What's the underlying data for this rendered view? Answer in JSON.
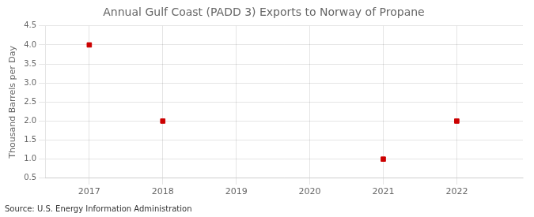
{
  "chart_data": {
    "type": "scatter",
    "title": "Annual Gulf Coast (PADD 3) Exports to Norway of Propane",
    "ylabel": "Thousand Barrels per Day",
    "annotations": [
      "Source: U.S. Energy Information Administration"
    ],
    "x": [
      2017,
      2018,
      2021,
      2022
    ],
    "values": [
      4.0,
      2.0,
      1.0,
      2.0
    ],
    "color": "#cc0000",
    "marker": "square",
    "xlim": [
      2016.4,
      2022.9
    ],
    "ylim": [
      0.5,
      4.5
    ],
    "xticks": [
      2017,
      2018,
      2019,
      2020,
      2021,
      2022
    ],
    "yticks": [
      0.5,
      {
        "value": 1.0,
        "label": "1.0"
      },
      1.5,
      {
        "value": 2.0,
        "label": "2.0"
      },
      2.5,
      {
        "value": 3.0,
        "label": "3.0"
      },
      3.5,
      {
        "value": 4.0,
        "label": "4.0"
      },
      4.5
    ],
    "grid": true
  }
}
